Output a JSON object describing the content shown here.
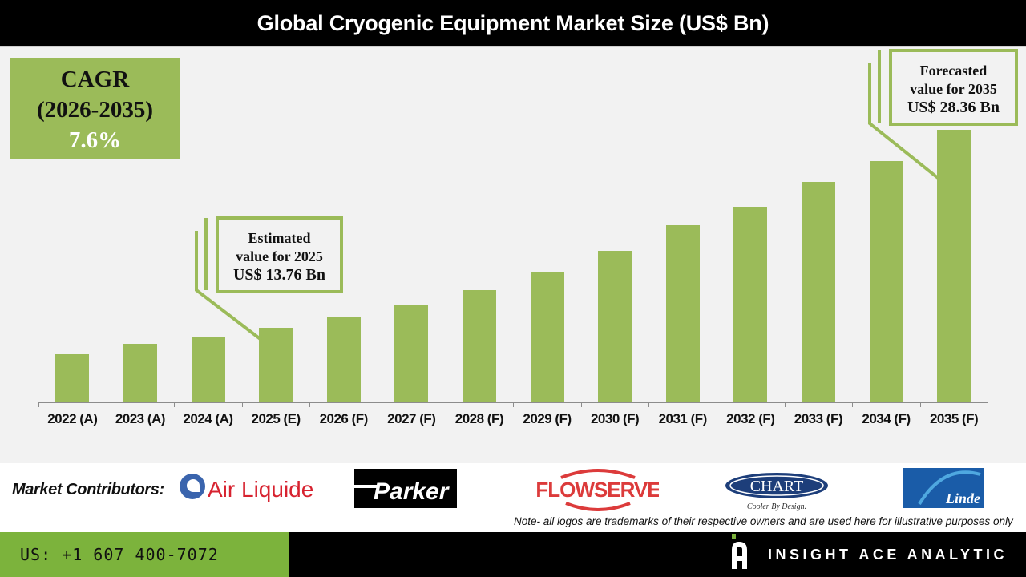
{
  "header": {
    "title": "Global Cryogenic Equipment Market Size (US$ Bn)"
  },
  "cagr": {
    "line1": "CAGR",
    "line2": "(2026-2035)",
    "value": "7.6%"
  },
  "callouts": {
    "estimated": {
      "line1": "Estimated",
      "line2": "value for 2025",
      "line3": "US$ 13.76 Bn"
    },
    "forecasted": {
      "line1": "Forecasted",
      "line2": "value for 2035",
      "line3": "US$ 28.36 Bn"
    }
  },
  "chart_data": {
    "type": "bar",
    "title": "Global Cryogenic Equipment Market Size (US$ Bn)",
    "xlabel": "",
    "ylabel": "US$ Bn",
    "categories": [
      "2022 (A)",
      "2023 (A)",
      "2024 (A)",
      "2025 (E)",
      "2026 (F)",
      "2027 (F)",
      "2028 (F)",
      "2029 (F)",
      "2030 (F)",
      "2031 (F)",
      "2032 (F)",
      "2033 (F)",
      "2034 (F)",
      "2035 (F)"
    ],
    "values": [
      11.81,
      12.58,
      13.11,
      13.76,
      14.53,
      15.47,
      16.54,
      17.84,
      19.43,
      21.33,
      22.68,
      24.52,
      26.05,
      28.36
    ],
    "annotations": [
      {
        "category": "2025 (E)",
        "text": "Estimated value for 2025 US$ 13.76 Bn"
      },
      {
        "category": "2035 (F)",
        "text": "Forecasted value for 2035 US$ 28.36 Bn"
      },
      {
        "text": "CAGR (2026-2035) 7.6%"
      }
    ],
    "grid": false,
    "legend": "none",
    "y_axis_visible": false,
    "bar_color": "#9bbb59"
  },
  "contributors": {
    "label": "Market Contributors:",
    "logos": [
      "Air Liquide",
      "Parker",
      "FLOWSERVE",
      "CHART",
      "Linde"
    ],
    "chart_tagline": "Cooler By Design.",
    "note": "Note- all logos are trademarks of their respective owners and are used here for illustrative purposes only"
  },
  "footer": {
    "phone": "US: +1 607 400-7072",
    "brand": "INSIGHT ACE ANALYTIC"
  },
  "colors": {
    "accent": "#9bbb59",
    "footer_green": "#7cb33c",
    "title_bg": "#000000"
  }
}
